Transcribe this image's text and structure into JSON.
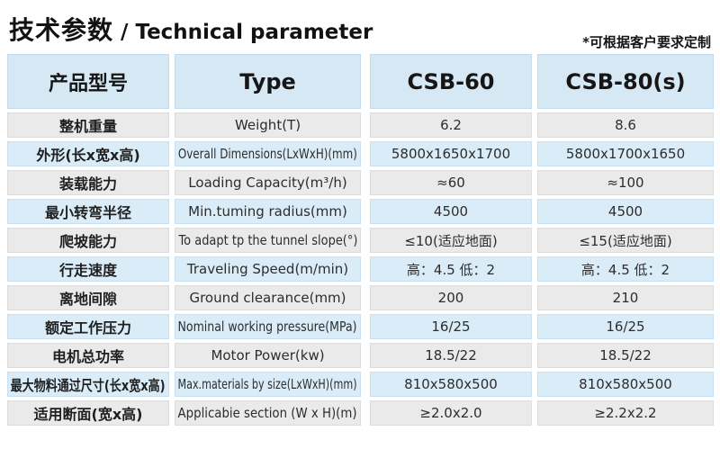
{
  "page": {
    "title_cn": "技术参数",
    "title_sep": " / ",
    "title_en": "Technical parameter",
    "note": "*可根据客户要求定制"
  },
  "colors": {
    "header_bg": "#d7e8f5",
    "row_blue": "#daecf8",
    "row_gray": "#eaeaea",
    "text": "#2d2d2d"
  },
  "table": {
    "header": {
      "col1": "产品型号",
      "col2": "Type",
      "col3": "CSB-60",
      "col4": "CSB-80(s)"
    },
    "rows": [
      {
        "cn": "整机重量",
        "en": "Weight(T)",
        "csb60": "6.2",
        "csb80": "8.6"
      },
      {
        "cn": "外形(长x宽x高)",
        "en": "Overall Dimensions(LxWxH)(mm)",
        "csb60": "5800x1650x1700",
        "csb80": "5800x1700x1650"
      },
      {
        "cn": "装载能力",
        "en": "Loading Capacity(m³/h)",
        "csb60": "≈60",
        "csb80": "≈100"
      },
      {
        "cn": "最小转弯半径",
        "en": "Min.tuming radius(mm)",
        "csb60": "4500",
        "csb80": "4500"
      },
      {
        "cn": "爬坡能力",
        "en": "To adapt tp the tunnel slope(°)",
        "csb60": "≤10(适应地面)",
        "csb80": "≤15(适应地面)"
      },
      {
        "cn": "行走速度",
        "en": "Traveling Speed(m/min)",
        "csb60": "高：4.5 低：2",
        "csb80": "高：4.5 低：2"
      },
      {
        "cn": "离地间隙",
        "en": "Ground clearance(mm)",
        "csb60": "200",
        "csb80": "210"
      },
      {
        "cn": "额定工作压力",
        "en": "Nominal working pressure(MPa)",
        "csb60": "16/25",
        "csb80": "16/25"
      },
      {
        "cn": "电机总功率",
        "en": "Motor Power(kw)",
        "csb60": "18.5/22",
        "csb80": "18.5/22"
      },
      {
        "cn": "最大物料通过尺寸(长x宽x高)",
        "en": "Max.materials by size(LxWxH)(mm)",
        "csb60": "810x580x500",
        "csb80": "810x580x500"
      },
      {
        "cn": "适用断面(宽x高)",
        "en": "Applicabie section (W x H)(m)",
        "csb60": "≥2.0x2.0",
        "csb80": "≥2.2x2.2"
      }
    ]
  }
}
